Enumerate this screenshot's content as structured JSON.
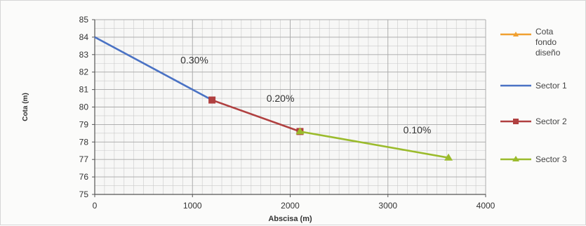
{
  "chart_data": {
    "type": "line",
    "xlabel": "Abscisa (m)",
    "ylabel": "Cota (m)",
    "xlim": [
      0,
      4000
    ],
    "ylim": [
      75,
      85
    ],
    "xticks": [
      0,
      1000,
      2000,
      3000,
      4000
    ],
    "yticks": [
      75,
      76,
      77,
      78,
      79,
      80,
      81,
      82,
      83,
      84,
      85
    ],
    "grid": true,
    "legend_position": "right",
    "series": [
      {
        "name": "Cota fondo diseño",
        "color": "#f0a030",
        "marker": "none",
        "x": [],
        "y": []
      },
      {
        "name": "Sector 1",
        "color": "#4a72c4",
        "marker": "none",
        "x": [
          0,
          1200
        ],
        "y": [
          84.0,
          80.4
        ]
      },
      {
        "name": "Sector 2",
        "color": "#b04040",
        "marker": "square",
        "x": [
          1200,
          2100
        ],
        "y": [
          80.4,
          78.6
        ]
      },
      {
        "name": "Sector 3",
        "color": "#9bbb2c",
        "marker": "triangle",
        "x": [
          2100,
          3620
        ],
        "y": [
          78.6,
          77.1
        ]
      }
    ],
    "annotations": [
      {
        "text": "0.30%",
        "x": 1020,
        "y": 82.5
      },
      {
        "text": "0.20%",
        "x": 1900,
        "y": 80.3
      },
      {
        "text": "0.10%",
        "x": 3300,
        "y": 78.5
      }
    ]
  }
}
